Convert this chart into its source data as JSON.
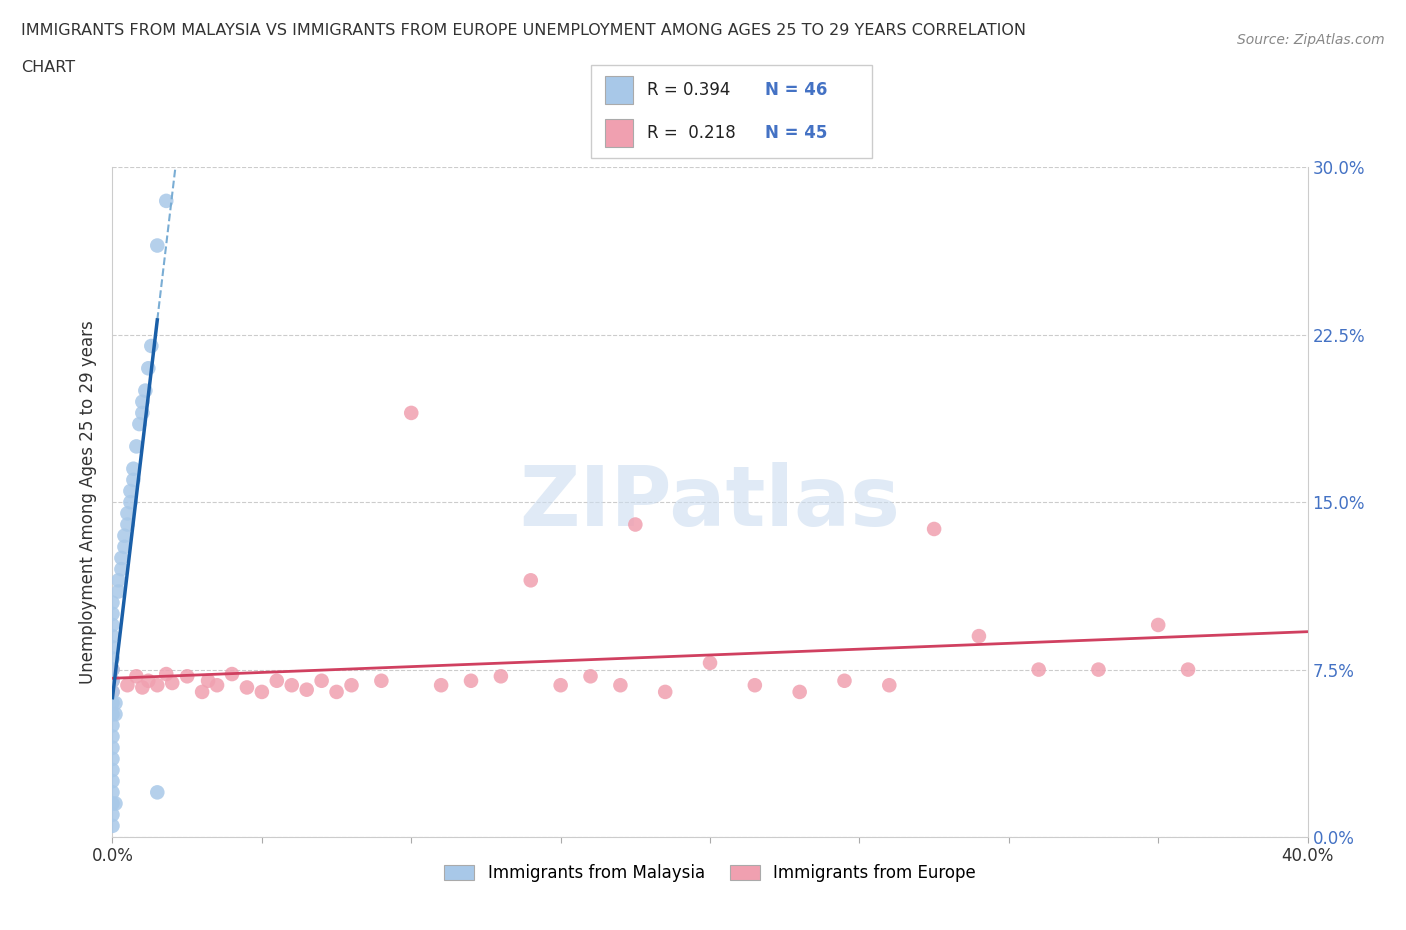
{
  "title_line1": "IMMIGRANTS FROM MALAYSIA VS IMMIGRANTS FROM EUROPE UNEMPLOYMENT AMONG AGES 25 TO 29 YEARS CORRELATION",
  "title_line2": "CHART",
  "source": "Source: ZipAtlas.com",
  "ylabel": "Unemployment Among Ages 25 to 29 years",
  "xlim": [
    0.0,
    0.4
  ],
  "ylim": [
    0.0,
    0.3
  ],
  "xticks": [
    0.0,
    0.05,
    0.1,
    0.15,
    0.2,
    0.25,
    0.3,
    0.35,
    0.4
  ],
  "yticks": [
    0.0,
    0.075,
    0.15,
    0.225,
    0.3
  ],
  "ytick_labels": [
    "0.0%",
    "7.5%",
    "15.0%",
    "22.5%",
    "30.0%"
  ],
  "malaysia_color": "#a8c8e8",
  "europe_color": "#f0a0b0",
  "malaysia_line_solid_color": "#1a5fa8",
  "malaysia_line_dash_color": "#7aadd4",
  "europe_line_color": "#d04060",
  "malaysia_R": 0.394,
  "malaysia_N": 46,
  "europe_R": 0.218,
  "europe_N": 45,
  "watermark": "ZIPatlas",
  "mal_x": [
    0.0,
    0.0,
    0.0,
    0.0,
    0.0,
    0.0,
    0.0,
    0.0,
    0.0,
    0.0,
    0.0,
    0.0,
    0.0,
    0.0,
    0.0,
    0.0,
    0.0,
    0.0,
    0.0,
    0.0,
    0.0,
    0.001,
    0.001,
    0.002,
    0.002,
    0.003,
    0.003,
    0.004,
    0.004,
    0.005,
    0.005,
    0.006,
    0.006,
    0.007,
    0.007,
    0.008,
    0.009,
    0.01,
    0.01,
    0.011,
    0.012,
    0.013,
    0.015,
    0.018,
    0.015,
    0.001
  ],
  "mal_y": [
    0.05,
    0.045,
    0.055,
    0.06,
    0.04,
    0.035,
    0.065,
    0.07,
    0.03,
    0.025,
    0.075,
    0.08,
    0.02,
    0.015,
    0.085,
    0.09,
    0.005,
    0.01,
    0.095,
    0.1,
    0.105,
    0.06,
    0.055,
    0.11,
    0.115,
    0.12,
    0.125,
    0.13,
    0.135,
    0.14,
    0.145,
    0.15,
    0.155,
    0.16,
    0.165,
    0.175,
    0.185,
    0.19,
    0.195,
    0.2,
    0.21,
    0.22,
    0.265,
    0.285,
    0.02,
    0.015
  ],
  "eur_x": [
    0.0,
    0.0,
    0.0,
    0.005,
    0.008,
    0.01,
    0.012,
    0.015,
    0.018,
    0.02,
    0.025,
    0.03,
    0.032,
    0.035,
    0.04,
    0.045,
    0.05,
    0.055,
    0.06,
    0.065,
    0.07,
    0.075,
    0.08,
    0.09,
    0.1,
    0.11,
    0.12,
    0.13,
    0.14,
    0.15,
    0.16,
    0.175,
    0.185,
    0.2,
    0.215,
    0.23,
    0.245,
    0.26,
    0.275,
    0.29,
    0.31,
    0.33,
    0.35,
    0.36,
    0.17
  ],
  "eur_y": [
    0.065,
    0.07,
    0.075,
    0.068,
    0.072,
    0.067,
    0.07,
    0.068,
    0.073,
    0.069,
    0.072,
    0.065,
    0.07,
    0.068,
    0.073,
    0.067,
    0.065,
    0.07,
    0.068,
    0.066,
    0.07,
    0.065,
    0.068,
    0.07,
    0.19,
    0.068,
    0.07,
    0.072,
    0.115,
    0.068,
    0.072,
    0.14,
    0.065,
    0.078,
    0.068,
    0.065,
    0.07,
    0.068,
    0.138,
    0.09,
    0.075,
    0.075,
    0.095,
    0.075,
    0.068
  ]
}
